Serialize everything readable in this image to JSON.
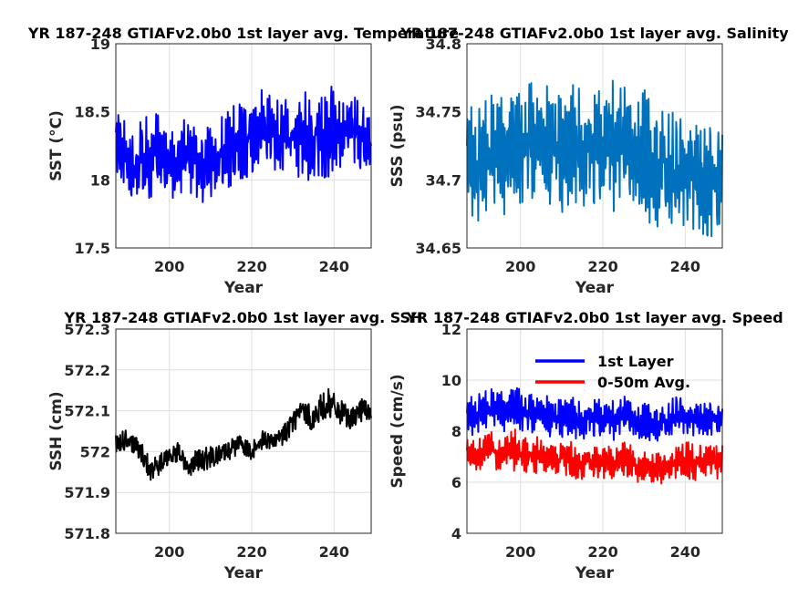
{
  "chart_data": [
    {
      "type": "line",
      "title": "YR 187-248 GTIAFv2.0b0 1st layer avg. Temperature",
      "xlabel": "Year",
      "ylabel": "SST (°C)",
      "xlim": [
        187,
        249
      ],
      "ylim": [
        17.5,
        19
      ],
      "xticks": [
        "200",
        "220",
        "240"
      ],
      "yticks": [
        "17.5",
        "18",
        "18.5",
        "19"
      ],
      "grid": true,
      "series": [
        {
          "color": "#0000ff",
          "x": [
            187,
            190,
            193,
            196,
            199,
            202,
            205,
            208,
            211,
            214,
            217,
            220,
            223,
            226,
            229,
            232,
            235,
            238,
            241,
            244,
            247,
            249
          ],
          "y": [
            18.3,
            18.1,
            18.15,
            18.2,
            18.1,
            18.15,
            18.2,
            18.1,
            18.15,
            18.2,
            18.25,
            18.3,
            18.35,
            18.3,
            18.3,
            18.35,
            18.3,
            18.35,
            18.3,
            18.4,
            18.3,
            18.25
          ],
          "amp": [
            0.3,
            0.25,
            0.3,
            0.3,
            0.28,
            0.3,
            0.3,
            0.28,
            0.3,
            0.3,
            0.3,
            0.3,
            0.33,
            0.3,
            0.3,
            0.32,
            0.3,
            0.4,
            0.3,
            0.3,
            0.25,
            0.22
          ]
        }
      ]
    },
    {
      "type": "line",
      "title": "YR 187-248 GTIAFv2.0b0 1st layer avg. Salinity",
      "xlabel": "Year",
      "ylabel": "SSS (psu)",
      "xlim": [
        187,
        249
      ],
      "ylim": [
        34.65,
        34.8
      ],
      "xticks": [
        "200",
        "220",
        "240"
      ],
      "yticks": [
        "34.65",
        "34.7",
        "34.75",
        "34.8"
      ],
      "grid": true,
      "series": [
        {
          "color": "#0072bd",
          "x": [
            187,
            190,
            193,
            196,
            199,
            202,
            205,
            208,
            211,
            214,
            217,
            220,
            223,
            226,
            229,
            232,
            235,
            238,
            241,
            244,
            247,
            249
          ],
          "y": [
            34.72,
            34.715,
            34.72,
            34.72,
            34.72,
            34.725,
            34.725,
            34.72,
            34.72,
            34.725,
            34.72,
            34.725,
            34.725,
            34.72,
            34.72,
            34.715,
            34.71,
            34.705,
            34.71,
            34.7,
            34.7,
            34.705
          ],
          "amp": [
            0.04,
            0.045,
            0.045,
            0.045,
            0.045,
            0.045,
            0.045,
            0.045,
            0.045,
            0.045,
            0.045,
            0.045,
            0.045,
            0.045,
            0.045,
            0.045,
            0.045,
            0.045,
            0.045,
            0.045,
            0.045,
            0.045
          ]
        }
      ]
    },
    {
      "type": "line",
      "title": "YR 187-248 GTIAFv2.0b0 1st layer avg. SSH",
      "xlabel": "Year",
      "ylabel": "SSH (cm)",
      "xlim": [
        187,
        249
      ],
      "ylim": [
        571.8,
        572.3
      ],
      "xticks": [
        "200",
        "220",
        "240"
      ],
      "yticks": [
        "571.8",
        "571.9",
        "572",
        "572.1",
        "572.2",
        "572.3"
      ],
      "grid": true,
      "series": [
        {
          "color": "#000000",
          "x": [
            187,
            190,
            193,
            196,
            199,
            202,
            205,
            208,
            211,
            214,
            217,
            220,
            223,
            226,
            229,
            232,
            235,
            238,
            241,
            244,
            247,
            249
          ],
          "y": [
            572.02,
            572.03,
            572.0,
            571.95,
            571.98,
            572.0,
            571.97,
            571.98,
            571.99,
            572.0,
            572.02,
            572.0,
            572.03,
            572.02,
            572.06,
            572.1,
            572.08,
            572.12,
            572.1,
            572.08,
            572.1,
            572.1
          ],
          "amp": [
            0.03,
            0.03,
            0.03,
            0.04,
            0.03,
            0.03,
            0.04,
            0.04,
            0.03,
            0.03,
            0.03,
            0.03,
            0.03,
            0.03,
            0.04,
            0.03,
            0.04,
            0.05,
            0.04,
            0.03,
            0.04,
            0.03
          ]
        }
      ]
    },
    {
      "type": "line",
      "title": "YR 187-248 GTIAFv2.0b0 1st layer avg. Speed",
      "xlabel": "Year",
      "ylabel": "Speed (cm/s)",
      "xlim": [
        187,
        249
      ],
      "ylim": [
        4,
        12
      ],
      "xticks": [
        "200",
        "220",
        "240"
      ],
      "yticks": [
        "4",
        "6",
        "8",
        "10",
        "12"
      ],
      "grid": true,
      "legend": "top-center",
      "series": [
        {
          "name": "1st Layer",
          "color": "#0000ff",
          "x": [
            187,
            190,
            193,
            196,
            199,
            202,
            205,
            208,
            211,
            214,
            217,
            220,
            223,
            226,
            229,
            232,
            235,
            238,
            241,
            244,
            247,
            249
          ],
          "y": [
            8.6,
            8.8,
            8.9,
            8.8,
            8.9,
            8.6,
            8.7,
            8.4,
            8.6,
            8.4,
            8.5,
            8.5,
            8.4,
            8.6,
            8.3,
            8.4,
            8.3,
            8.7,
            8.5,
            8.5,
            8.5,
            8.5
          ],
          "amp": [
            0.8,
            0.8,
            0.8,
            0.8,
            0.9,
            0.8,
            0.8,
            0.8,
            0.8,
            0.8,
            0.8,
            0.8,
            0.7,
            0.8,
            0.7,
            0.7,
            0.7,
            0.8,
            0.7,
            0.7,
            0.7,
            0.6
          ]
        },
        {
          "name": "0-50m Avg.",
          "color": "#ff0000",
          "x": [
            187,
            190,
            193,
            196,
            199,
            202,
            205,
            208,
            211,
            214,
            217,
            220,
            223,
            226,
            229,
            232,
            235,
            238,
            241,
            244,
            247,
            249
          ],
          "y": [
            7.0,
            7.2,
            7.3,
            7.1,
            7.3,
            7.0,
            7.1,
            6.8,
            7.0,
            6.7,
            6.8,
            6.8,
            6.7,
            6.9,
            6.5,
            6.6,
            6.5,
            6.8,
            6.8,
            6.8,
            6.8,
            6.8
          ],
          "amp": [
            0.7,
            0.7,
            0.7,
            0.7,
            0.8,
            0.7,
            0.7,
            0.7,
            0.7,
            0.7,
            0.7,
            0.7,
            0.6,
            0.7,
            0.6,
            0.6,
            0.6,
            0.7,
            0.7,
            0.7,
            0.7,
            0.6
          ]
        }
      ]
    }
  ]
}
